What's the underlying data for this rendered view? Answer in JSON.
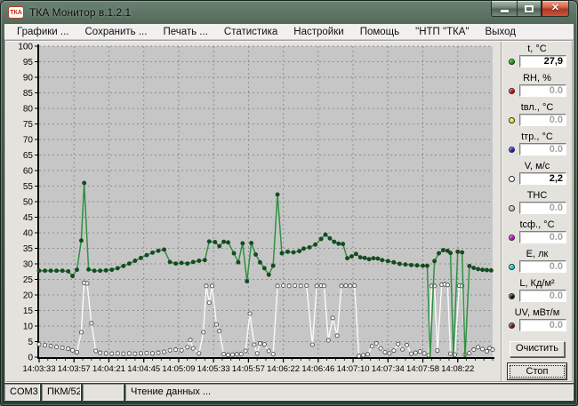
{
  "window": {
    "title": "ТКА Монитор в.1.2.1",
    "icon_text": "ТКА"
  },
  "icons": {
    "app": "tka-logo-badge",
    "minimize": "minimize-icon",
    "maximize": "maximize-icon",
    "close": "✕"
  },
  "menu": {
    "items": [
      {
        "label": "Графики ..."
      },
      {
        "label": "Сохранить ..."
      },
      {
        "label": "Печать ..."
      },
      {
        "label": "Статистика"
      },
      {
        "label": "Настройки"
      },
      {
        "label": "Помощь"
      },
      {
        "label": "\"НТП \"ТКА\""
      },
      {
        "label": "Выход"
      }
    ]
  },
  "sensors": [
    {
      "label": "t, °C",
      "value": "27,9",
      "color": "#00a400",
      "state": "active"
    },
    {
      "label": "RH, %",
      "value": "0.0",
      "color": "#e00000",
      "state": "inactive"
    },
    {
      "label": "tвл., °C",
      "value": "0.0",
      "color": "#f0e800",
      "state": "inactive"
    },
    {
      "label": "tтр., °C",
      "value": "0.0",
      "color": "#1020e0",
      "state": "inactive"
    },
    {
      "label": "V, м/с",
      "value": "2,2",
      "color": "#ffffff",
      "state": "active"
    },
    {
      "label": "ТНС",
      "value": "0.0",
      "color": "#c0c0c0",
      "state": "inactive"
    },
    {
      "label": "tсф., °С",
      "value": "0.0",
      "color": "#d000d0",
      "state": "inactive"
    },
    {
      "label": "Е, лк",
      "value": "0.0",
      "color": "#00d8d8",
      "state": "inactive"
    },
    {
      "label": "L, Кд/м²",
      "value": "0.0",
      "color": "#101010",
      "state": "inactive"
    },
    {
      "label": "UV, мВт/м",
      "value": "0.0",
      "color": "#7a1010",
      "state": "inactive"
    }
  ],
  "buttons": {
    "clear": "Очистить",
    "stop": "Стоп"
  },
  "status": {
    "port": "COM3",
    "device": "ПКМ/52",
    "spare": "",
    "message": "Чтение данных ..."
  },
  "chart_data": {
    "type": "line",
    "title": "",
    "grid": true,
    "plot_bg": "#c6c6c6",
    "grid_color": "#8f8f8f",
    "y_axis": {
      "min": 0,
      "max": 100,
      "step": 5
    },
    "x_axis": {
      "labels": [
        "14:03:33",
        "14:03:57",
        "14:04:21",
        "14:04:45",
        "14:05:09",
        "14:05:33",
        "14:05:57",
        "14:06:22",
        "14:06:46",
        "14:07:10",
        "14:07:34",
        "14:07:58",
        "14:08:22"
      ],
      "seconds_per_label": 24,
      "range_seconds": [
        0,
        312
      ],
      "minor_tick_seconds": 6
    },
    "series": [
      {
        "name": "V, м/с",
        "color": "#fafafa",
        "marker": "circle-outline",
        "marker_color": "#fdfdfd",
        "marker_stroke": "#4a4a4a",
        "points": [
          [
            0,
            4.1
          ],
          [
            4,
            3.8
          ],
          [
            8,
            3.6
          ],
          [
            12,
            3.3
          ],
          [
            16,
            3
          ],
          [
            20,
            2.7
          ],
          [
            23,
            2.2
          ],
          [
            26,
            1.6
          ],
          [
            29,
            8
          ],
          [
            31,
            23.9
          ],
          [
            33,
            23.7
          ],
          [
            36,
            10.9
          ],
          [
            39,
            2
          ],
          [
            42,
            1.4
          ],
          [
            46,
            1.2
          ],
          [
            50,
            1.1
          ],
          [
            54,
            1.2
          ],
          [
            58,
            1.1
          ],
          [
            62,
            1.2
          ],
          [
            66,
            1.1
          ],
          [
            70,
            1.2
          ],
          [
            74,
            1.3
          ],
          [
            78,
            1.2
          ],
          [
            82,
            1.4
          ],
          [
            86,
            1.7
          ],
          [
            90,
            2.2
          ],
          [
            94,
            2.4
          ],
          [
            98,
            2.2
          ],
          [
            102,
            3.2
          ],
          [
            104,
            5.5
          ],
          [
            106,
            2.8
          ],
          [
            110,
            1.2
          ],
          [
            113,
            8
          ],
          [
            115,
            22.9
          ],
          [
            117,
            17.5
          ],
          [
            119,
            22.9
          ],
          [
            122,
            10.5
          ],
          [
            124,
            8.4
          ],
          [
            127,
            1
          ],
          [
            130,
            0.7
          ],
          [
            133,
            0.8
          ],
          [
            136,
            0.9
          ],
          [
            139,
            1
          ],
          [
            142,
            2
          ],
          [
            145,
            14
          ],
          [
            148,
            4
          ],
          [
            150,
            1.2
          ],
          [
            152,
            4.4
          ],
          [
            155,
            4.1
          ],
          [
            158,
            2
          ],
          [
            161,
            1
          ],
          [
            164,
            22.9
          ],
          [
            168,
            23
          ],
          [
            172,
            22.9
          ],
          [
            176,
            23
          ],
          [
            180,
            22.9
          ],
          [
            184,
            23
          ],
          [
            188,
            4
          ],
          [
            191,
            22.9
          ],
          [
            194,
            23
          ],
          [
            196,
            22.9
          ],
          [
            199,
            5.4
          ],
          [
            202,
            12.6
          ],
          [
            205,
            6.9
          ],
          [
            208,
            22.9
          ],
          [
            211,
            23
          ],
          [
            214,
            22.9
          ],
          [
            217,
            23
          ],
          [
            220,
            0.4
          ],
          [
            223,
            0.6
          ],
          [
            226,
            0.9
          ],
          [
            229,
            3.5
          ],
          [
            232,
            4.4
          ],
          [
            235,
            2.8
          ],
          [
            238,
            1.6
          ],
          [
            241,
            1.2
          ],
          [
            244,
            2.1
          ],
          [
            247,
            4.2
          ],
          [
            250,
            2.5
          ],
          [
            253,
            3.9
          ],
          [
            256,
            1.1
          ],
          [
            259,
            1.4
          ],
          [
            262,
            1.8
          ],
          [
            265,
            1.2
          ],
          [
            268,
            0.6
          ],
          [
            270,
            22.9
          ],
          [
            272,
            22.9
          ],
          [
            274,
            2.1
          ],
          [
            277,
            23.3
          ],
          [
            279,
            23.4
          ],
          [
            281,
            23.2
          ],
          [
            283,
            1.1
          ],
          [
            286,
            0.8
          ],
          [
            289,
            23
          ],
          [
            291,
            22.9
          ],
          [
            293,
            0.8
          ],
          [
            296,
            1.3
          ],
          [
            299,
            2.4
          ],
          [
            302,
            3.2
          ],
          [
            305,
            2.6
          ],
          [
            308,
            1.9
          ],
          [
            310,
            2.9
          ],
          [
            312,
            2.4
          ]
        ]
      },
      {
        "name": "t, °C",
        "color": "#2f9242",
        "marker": "dot",
        "marker_color": "#164a22",
        "marker_stroke": "#164a22",
        "points": [
          [
            0,
            27.8
          ],
          [
            4,
            27.8
          ],
          [
            8,
            27.8
          ],
          [
            12,
            27.8
          ],
          [
            16,
            27.8
          ],
          [
            20,
            27.6
          ],
          [
            23,
            26.1
          ],
          [
            26,
            28.1
          ],
          [
            29,
            37.5
          ],
          [
            31,
            56
          ],
          [
            34,
            28.2
          ],
          [
            38,
            27.8
          ],
          [
            42,
            27.8
          ],
          [
            46,
            27.9
          ],
          [
            50,
            28.1
          ],
          [
            54,
            28.6
          ],
          [
            58,
            29.3
          ],
          [
            62,
            30.1
          ],
          [
            66,
            31
          ],
          [
            70,
            31.9
          ],
          [
            74,
            32.8
          ],
          [
            78,
            33.6
          ],
          [
            82,
            34.2
          ],
          [
            86,
            34.6
          ],
          [
            90,
            30.6
          ],
          [
            94,
            30.1
          ],
          [
            98,
            30.3
          ],
          [
            102,
            30.1
          ],
          [
            106,
            30.6
          ],
          [
            110,
            31
          ],
          [
            114,
            31.2
          ],
          [
            117,
            37.2
          ],
          [
            121,
            37
          ],
          [
            124,
            35.7
          ],
          [
            127,
            37.1
          ],
          [
            130,
            36.9
          ],
          [
            134,
            33.4
          ],
          [
            137,
            30.5
          ],
          [
            140,
            36.6
          ],
          [
            143,
            24.4
          ],
          [
            146,
            36.7
          ],
          [
            149,
            33
          ],
          [
            152,
            30.5
          ],
          [
            155,
            28.6
          ],
          [
            158,
            26.5
          ],
          [
            161,
            29.4
          ],
          [
            164,
            52.3
          ],
          [
            167,
            33.4
          ],
          [
            171,
            33.9
          ],
          [
            175,
            33.7
          ],
          [
            179,
            34.1
          ],
          [
            182,
            34.9
          ],
          [
            186,
            35.3
          ],
          [
            190,
            36.2
          ],
          [
            194,
            38
          ],
          [
            197,
            39.4
          ],
          [
            200,
            38.2
          ],
          [
            203,
            37.1
          ],
          [
            206,
            36.5
          ],
          [
            209,
            36.4
          ],
          [
            212,
            31.8
          ],
          [
            215,
            32.4
          ],
          [
            218,
            33.2
          ],
          [
            221,
            32.1
          ],
          [
            224,
            31.9
          ],
          [
            227,
            31.5
          ],
          [
            230,
            31.8
          ],
          [
            233,
            31.7
          ],
          [
            236,
            31.2
          ],
          [
            240,
            30.9
          ],
          [
            244,
            30.5
          ],
          [
            248,
            30
          ],
          [
            252,
            29.8
          ],
          [
            256,
            29.6
          ],
          [
            260,
            29.5
          ],
          [
            264,
            29.4
          ],
          [
            267,
            29.4
          ],
          [
            269,
            0
          ],
          [
            272,
            30.9
          ],
          [
            275,
            33.4
          ],
          [
            278,
            34.4
          ],
          [
            281,
            34.2
          ],
          [
            283,
            33.5
          ],
          [
            285,
            0
          ],
          [
            288,
            33.9
          ],
          [
            291,
            33.7
          ],
          [
            293,
            0
          ],
          [
            296,
            29.3
          ],
          [
            299,
            28.7
          ],
          [
            302,
            28.3
          ],
          [
            305,
            28.1
          ],
          [
            308,
            28
          ],
          [
            311,
            27.9
          ]
        ]
      }
    ]
  }
}
